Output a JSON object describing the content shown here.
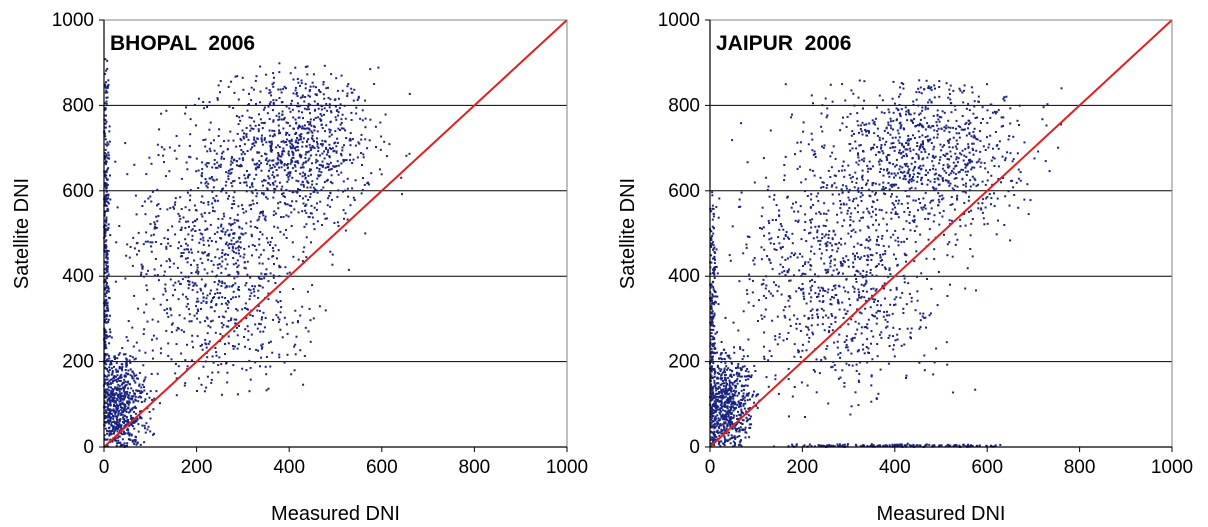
{
  "chart_data": [
    {
      "type": "scatter",
      "title": "BHOPAL  2006",
      "xlabel": "Measured DNI",
      "ylabel": "Satellite DNI",
      "xlim": [
        0,
        1000
      ],
      "ylim": [
        0,
        1000
      ],
      "xticks": [
        0,
        200,
        400,
        600,
        800,
        1000
      ],
      "yticks": [
        0,
        200,
        400,
        600,
        800,
        1000
      ],
      "grid": "horizontal",
      "point_color": "#1a237e",
      "reference_line": {
        "x": [
          0,
          1000
        ],
        "y": [
          0,
          1000
        ],
        "color": "#e02020"
      },
      "clusters": [
        {
          "n": 900,
          "cx": 420,
          "cy": 700,
          "sx": 80,
          "sy": 95,
          "xmin": 180,
          "xmax": 720,
          "ymin": 380,
          "ymax": 900
        },
        {
          "n": 700,
          "cx": 230,
          "cy": 470,
          "sx": 90,
          "sy": 150,
          "xmin": 20,
          "xmax": 620,
          "ymin": 120,
          "ymax": 900
        },
        {
          "n": 650,
          "cx": 30,
          "cy": 90,
          "sx": 30,
          "sy": 70,
          "xmin": 0,
          "xmax": 220,
          "ymin": 0,
          "ymax": 260
        },
        {
          "n": 350,
          "cx": 4,
          "cy": 450,
          "sx": 4,
          "sy": 250,
          "xmin": 0,
          "xmax": 30,
          "ymin": 0,
          "ymax": 910
        },
        {
          "n": 220,
          "cx": 280,
          "cy": 300,
          "sx": 110,
          "sy": 110,
          "xmin": 60,
          "xmax": 560,
          "ymin": 120,
          "ymax": 520
        }
      ]
    },
    {
      "type": "scatter",
      "title": "JAIPUR  2006",
      "xlabel": "Measured DNI",
      "ylabel": "Satellite DNI",
      "xlim": [
        0,
        1000
      ],
      "ylim": [
        0,
        1000
      ],
      "xticks": [
        0,
        200,
        400,
        600,
        800,
        1000
      ],
      "yticks": [
        0,
        200,
        400,
        600,
        800,
        1000
      ],
      "grid": "horizontal",
      "point_color": "#1a237e",
      "reference_line": {
        "x": [
          0,
          1000
        ],
        "y": [
          0,
          1000
        ],
        "color": "#e02020"
      },
      "clusters": [
        {
          "n": 900,
          "cx": 470,
          "cy": 690,
          "sx": 110,
          "sy": 100,
          "xmin": 220,
          "xmax": 800,
          "ymin": 400,
          "ymax": 860
        },
        {
          "n": 700,
          "cx": 260,
          "cy": 450,
          "sx": 100,
          "sy": 150,
          "xmin": 20,
          "xmax": 680,
          "ymin": 100,
          "ymax": 860
        },
        {
          "n": 650,
          "cx": 30,
          "cy": 90,
          "sx": 30,
          "sy": 70,
          "xmin": 0,
          "xmax": 220,
          "ymin": 0,
          "ymax": 260
        },
        {
          "n": 220,
          "cx": 5,
          "cy": 300,
          "sx": 5,
          "sy": 150,
          "xmin": 0,
          "xmax": 30,
          "ymin": 0,
          "ymax": 600
        },
        {
          "n": 220,
          "cx": 300,
          "cy": 300,
          "sx": 120,
          "sy": 110,
          "xmin": 60,
          "xmax": 600,
          "ymin": 60,
          "ymax": 560
        },
        {
          "n": 160,
          "cx": 380,
          "cy": 3,
          "sx": 160,
          "sy": 2,
          "xmin": 100,
          "xmax": 700,
          "ymin": 0,
          "ymax": 8
        }
      ]
    }
  ]
}
